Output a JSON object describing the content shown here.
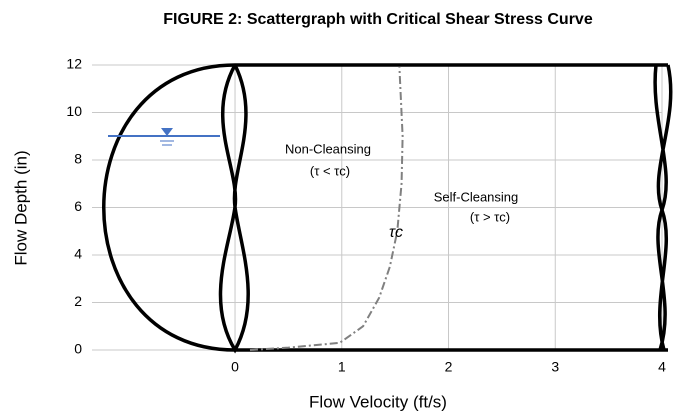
{
  "chart_data": {
    "type": "line",
    "title": "FIGURE 2:  Scattergraph with Critical Shear Stress Curve",
    "x_label": "Flow Velocity (ft/s)",
    "y_label": "Flow Depth (in)",
    "series": [
      {
        "name": "τc",
        "color": "#808080",
        "x": [
          0.14,
          0.5,
          0.98,
          1.2,
          1.35,
          1.45,
          1.52,
          1.56,
          1.57,
          1.54
        ],
        "values": [
          0,
          0.1,
          0.3,
          1,
          2.2,
          3.5,
          5,
          7,
          9,
          11.9
        ]
      }
    ],
    "annotations": [
      "Non-Cleansing",
      "(τ < τc)",
      "Self-Cleansing",
      "(τ > τc)"
    ],
    "xlim": [
      -1.34,
      4
    ],
    "xticks": [
      0,
      1,
      2,
      3,
      4
    ],
    "ylim": [
      0,
      12
    ],
    "yticks": [
      0,
      2,
      4,
      6,
      8,
      10,
      12
    ],
    "grid": true
  }
}
